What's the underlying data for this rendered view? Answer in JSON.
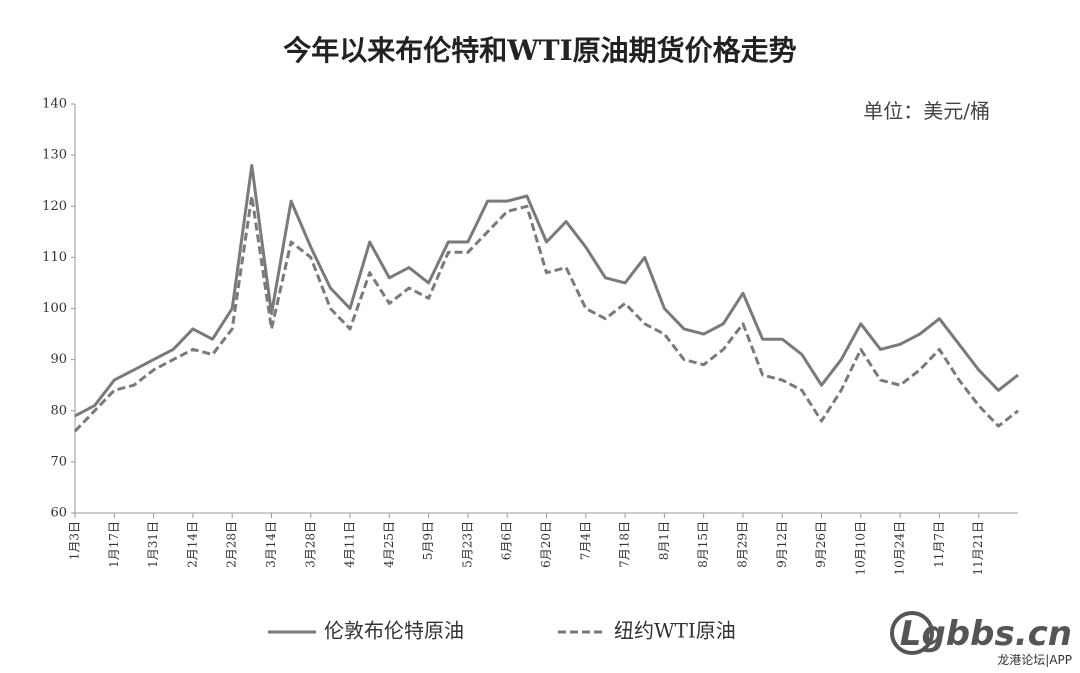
{
  "chart_data": {
    "type": "line",
    "title": "今年以来布伦特和WTI原油期货价格走势",
    "annotation": "单位：美元/桶",
    "categories": [
      "1月3日",
      null,
      "1月17日",
      null,
      "1月31日",
      null,
      "2月14日",
      null,
      "2月28日",
      null,
      "3月14日",
      null,
      "3月28日",
      null,
      "4月11日",
      null,
      "4月25日",
      null,
      "5月9日",
      null,
      "5月23日",
      null,
      "6月6日",
      null,
      "6月20日",
      null,
      "7月4日",
      null,
      "7月18日",
      null,
      "8月1日",
      null,
      "8月15日",
      null,
      "8月29日",
      null,
      "9月12日",
      null,
      "9月26日",
      null,
      "10月10日",
      null,
      "10月24日",
      null,
      "11月7日",
      null,
      "11月21日",
      null,
      null
    ],
    "series": [
      {
        "name": "伦敦布伦特原油",
        "color": "#7a7a7a",
        "dash": false,
        "values": [
          79,
          81,
          86,
          88,
          90,
          92,
          96,
          94,
          100,
          128,
          99,
          121,
          112,
          104,
          100,
          113,
          106,
          108,
          105,
          113,
          113,
          121,
          121,
          122,
          113,
          117,
          112,
          106,
          105,
          110,
          100,
          96,
          95,
          97,
          103,
          94,
          94,
          91,
          85,
          90,
          97,
          92,
          93,
          95,
          98,
          93,
          88,
          84,
          87
        ]
      },
      {
        "name": "纽约WTI原油",
        "color": "#7a7a7a",
        "dash": true,
        "values": [
          76,
          80,
          84,
          85,
          88,
          90,
          92,
          91,
          96,
          122,
          96,
          113,
          110,
          100,
          96,
          107,
          101,
          104,
          102,
          111,
          111,
          115,
          119,
          120,
          107,
          108,
          100,
          98,
          101,
          97,
          95,
          90,
          89,
          92,
          97,
          87,
          86,
          84,
          78,
          84,
          92,
          86,
          85,
          88,
          92,
          86,
          81,
          77,
          80
        ]
      }
    ],
    "ylim": [
      60,
      140
    ],
    "yticks": [
      60,
      70,
      80,
      90,
      100,
      110,
      120,
      130,
      140
    ],
    "grid": false
  },
  "watermark": {
    "site": "Lgbbs.cn",
    "sub": "龙港论坛|APP"
  }
}
